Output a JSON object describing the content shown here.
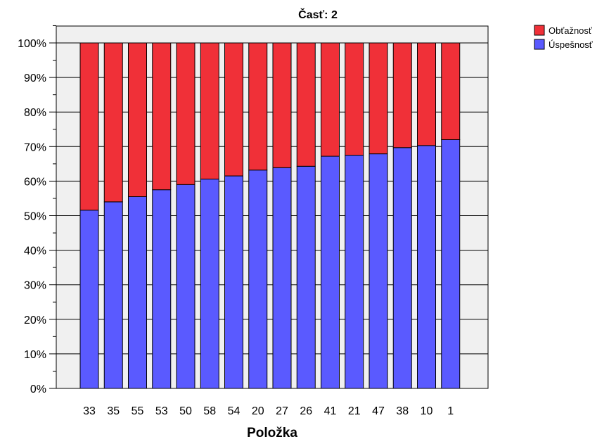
{
  "chart_data": {
    "type": "bar",
    "stacked": true,
    "title": "Časť: 2",
    "xlabel": "Položka",
    "ylabel": "",
    "ylim": [
      0,
      100
    ],
    "y_ticks": [
      "0%",
      "10%",
      "20%",
      "30%",
      "40%",
      "50%",
      "60%",
      "70%",
      "80%",
      "90%",
      "100%"
    ],
    "grid": true,
    "legend_position": "top-right",
    "categories": [
      "33",
      "35",
      "55",
      "53",
      "50",
      "58",
      "54",
      "20",
      "27",
      "26",
      "41",
      "21",
      "47",
      "38",
      "10",
      "1"
    ],
    "series": [
      {
        "name": "Úspešnosť",
        "color": "#5a5aff",
        "values": [
          51.6,
          54.0,
          55.5,
          57.5,
          59.0,
          60.6,
          61.5,
          63.2,
          63.9,
          64.3,
          67.2,
          67.5,
          67.9,
          69.7,
          70.3,
          72.0
        ]
      },
      {
        "name": "Obťažnosť",
        "color": "#f03038",
        "values": [
          48.4,
          46.0,
          44.5,
          42.5,
          41.0,
          39.4,
          38.5,
          36.8,
          36.1,
          35.7,
          32.8,
          32.5,
          32.1,
          30.3,
          29.7,
          28.0
        ]
      }
    ],
    "legend_order": [
      "Obťažnosť",
      "Úspešnosť"
    ],
    "plot_background": "#f0f0f0"
  }
}
